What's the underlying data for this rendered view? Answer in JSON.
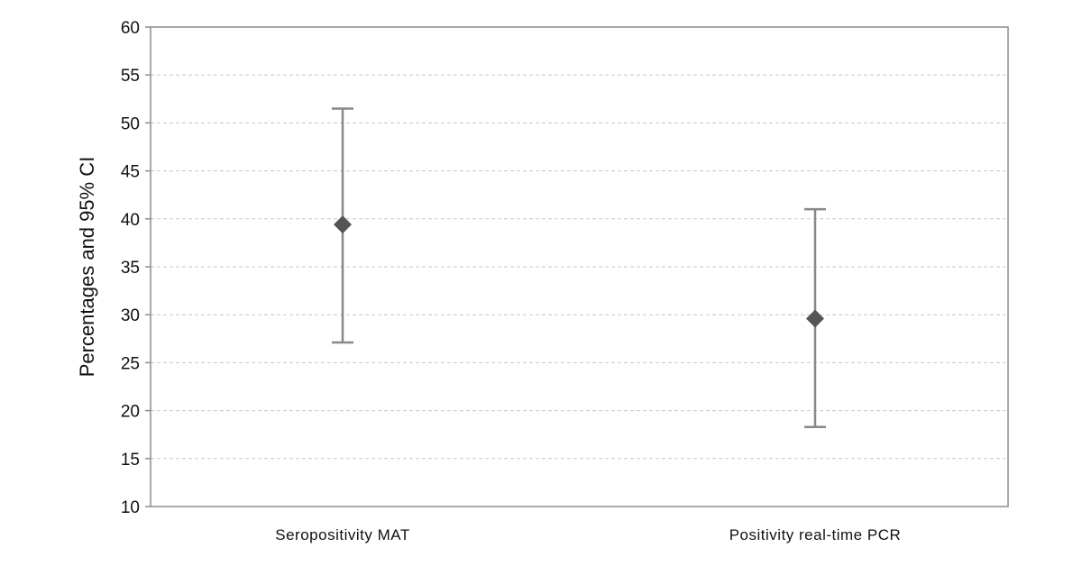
{
  "chart_data": {
    "type": "scatter",
    "title": "",
    "xlabel": "",
    "ylabel": "Percentages and 95% CI",
    "ylim": [
      10,
      60
    ],
    "y_ticks": [
      10,
      15,
      20,
      25,
      30,
      35,
      40,
      45,
      50,
      55,
      60
    ],
    "categories": [
      "Seropositivity MAT",
      "Positivity real-time PCR"
    ],
    "values": [
      39.4,
      29.6
    ],
    "ci_lower": [
      27.1,
      18.3
    ],
    "ci_upper": [
      51.5,
      41.0
    ],
    "grid": true,
    "legend": "none",
    "colors": {
      "marker": "#555555",
      "error_bar": "#888888",
      "grid": "#c8c8c8",
      "axis": "#8c8c8c"
    }
  }
}
